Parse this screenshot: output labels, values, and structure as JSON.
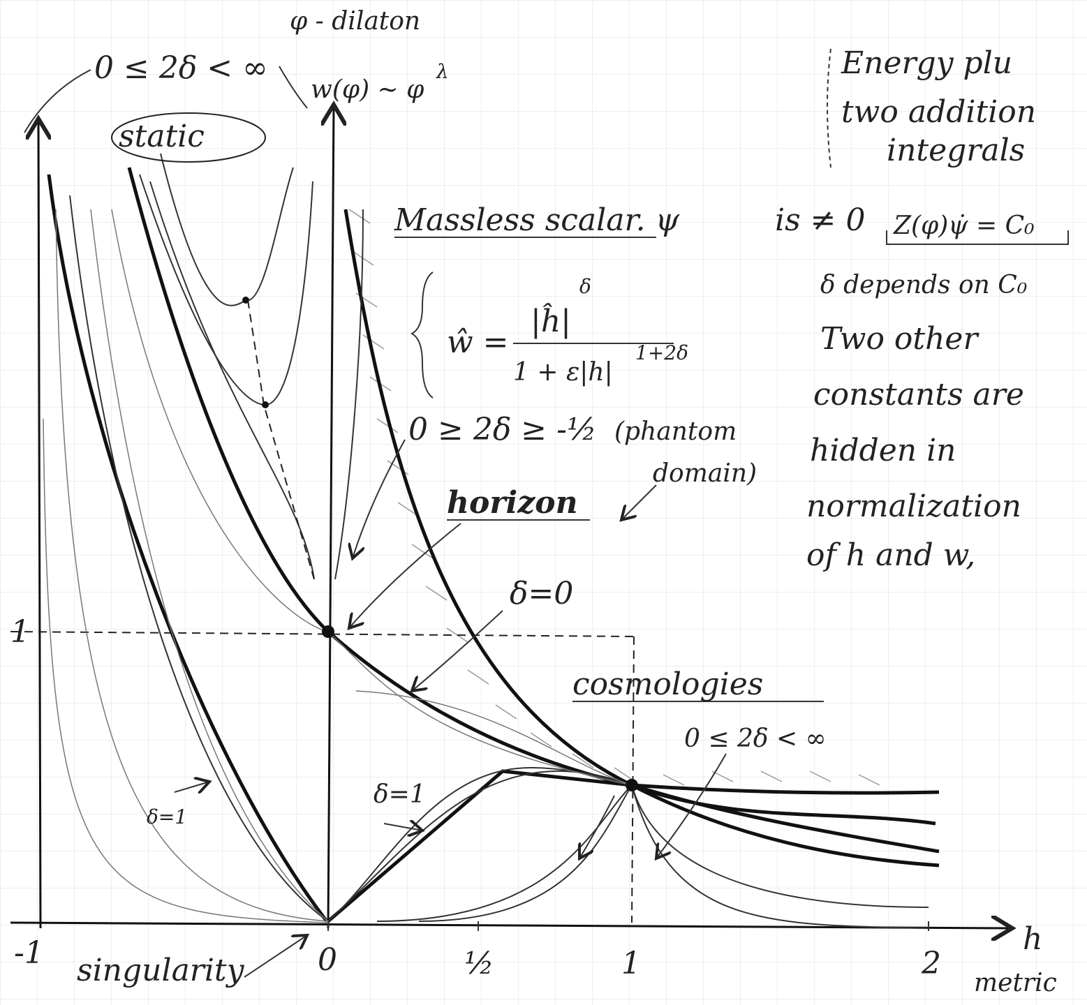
{
  "top": {
    "dilaton": "φ - dilaton",
    "delta_range": "0 ≤ 2δ < ∞",
    "potential": "w(φ) ~ φ",
    "potential_exp": "λ",
    "static": "static"
  },
  "note_box": {
    "lines": [
      "Energy plu",
      "two addition",
      "integrals"
    ]
  },
  "scalar": {
    "title": "Massless scalar. ψ",
    "nonzero": "is ≠ 0",
    "integral": "Z(φ)ψ̇ = C₀"
  },
  "formula": {
    "lhs": "ŵ =",
    "numerator": "|ĥ|",
    "numerator_exp": "δ",
    "denominator": "1 + ε|h|",
    "denominator_exp": "1+2δ"
  },
  "notes": [
    "δ depends on C₀",
    "Two other",
    "constants are",
    "hidden in",
    "normalization",
    "of h and w,"
  ],
  "phantom": {
    "range": "0 ≥ 2δ ≥ -½",
    "label_1": "(phantom",
    "label_2": "domain)"
  },
  "labels": {
    "horizon": "horizon",
    "delta_zero": "δ=0",
    "cosmologies": "cosmologies",
    "cosmo_range": "0 ≤ 2δ < ∞",
    "delta_one_left": "δ=1",
    "delta_one_right": "δ=1",
    "singularity": "singularity"
  },
  "axis": {
    "x_ticks": [
      "-1",
      "0",
      "½",
      "1",
      "2"
    ],
    "y_tick": "1",
    "x_name": "h",
    "x_desc": "metric"
  }
}
